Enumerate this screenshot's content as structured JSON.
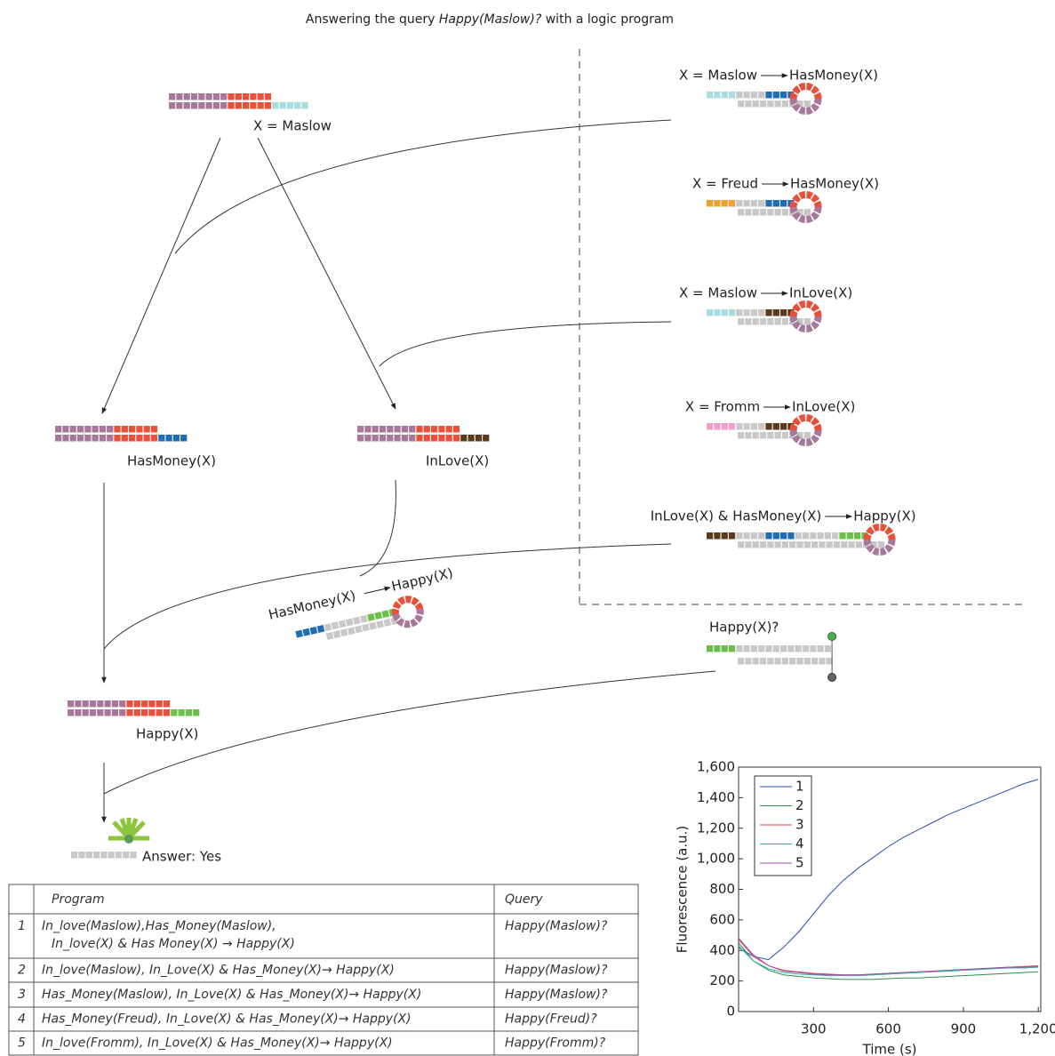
{
  "title": {
    "pre": "Answering the query",
    "query": "Happy(Maslow)?",
    "post": "with a logic program"
  },
  "tree": {
    "root": "X = Maslow",
    "left": "HasMoney(X)",
    "right": "InLove(X)",
    "rule_from": "HasMoney(X)",
    "rule_to": "Happy(X)",
    "goal": "Happy(X)",
    "answer": "Answer: Yes"
  },
  "rules": [
    {
      "left": "X = Maslow",
      "right": "HasMoney(X)"
    },
    {
      "left": "X = Freud",
      "right": "HasMoney(X)"
    },
    {
      "left": "X = Maslow",
      "right": "InLove(X)"
    },
    {
      "left": "X = Fromm",
      "right": "InLove(X)"
    },
    {
      "left": "InLove(X) & HasMoney(X)",
      "right": "Happy(X)"
    }
  ],
  "probe": "Happy(X)?",
  "table": {
    "header": {
      "program": "Program",
      "query": "Query"
    },
    "rows": [
      {
        "n": "1",
        "program": [
          "In_love(Maslow),Has_Money(Maslow),",
          "In_love(X) & Has Money(X) → Happy(X)"
        ],
        "query": "Happy(Maslow)?"
      },
      {
        "n": "2",
        "program": [
          "In_love(Maslow), In_Love(X) & Has_Money(X)→ Happy(X)"
        ],
        "query": "Happy(Maslow)?"
      },
      {
        "n": "3",
        "program": [
          "Has_Money(Maslow), In_Love(X) & Has_Money(X)→ Happy(X)"
        ],
        "query": "Happy(Maslow)?"
      },
      {
        "n": "4",
        "program": [
          "Has_Money(Freud), In_Love(X) & Has_Money(X)→ Happy(X)"
        ],
        "query": "Happy(Freud)?"
      },
      {
        "n": "5",
        "program": [
          "In_love(Fromm), In_Love(X) & Has_Money(X)→ Happy(X)"
        ],
        "query": "Happy(Fromm)?"
      }
    ]
  },
  "chart_data": {
    "type": "line",
    "xlabel": "Time (s)",
    "ylabel": "Fluorescence (a.u.)",
    "x": [
      0,
      60,
      120,
      180,
      240,
      300,
      360,
      420,
      480,
      540,
      600,
      660,
      720,
      780,
      840,
      900,
      960,
      1020,
      1080,
      1140,
      1200
    ],
    "series": [
      {
        "name": "1",
        "color": "#2a4fb0",
        "values": [
          420,
          360,
          340,
          420,
          520,
          640,
          760,
          860,
          940,
          1010,
          1080,
          1140,
          1190,
          1240,
          1290,
          1330,
          1370,
          1410,
          1450,
          1490,
          1520
        ]
      },
      {
        "name": "2",
        "color": "#2e8a4a",
        "values": [
          450,
          330,
          270,
          240,
          230,
          220,
          215,
          210,
          210,
          210,
          215,
          220,
          220,
          225,
          230,
          235,
          240,
          245,
          250,
          255,
          260
        ]
      },
      {
        "name": "3",
        "color": "#e04848",
        "values": [
          470,
          360,
          300,
          270,
          260,
          250,
          245,
          240,
          240,
          245,
          250,
          255,
          260,
          265,
          270,
          275,
          280,
          285,
          290,
          295,
          300
        ]
      },
      {
        "name": "4",
        "color": "#35b5a0",
        "values": [
          430,
          330,
          280,
          255,
          245,
          240,
          235,
          235,
          235,
          240,
          245,
          250,
          255,
          260,
          265,
          270,
          275,
          280,
          285,
          285,
          290
        ]
      },
      {
        "name": "5",
        "color": "#9a4fa8",
        "values": [
          480,
          370,
          300,
          265,
          255,
          245,
          240,
          240,
          240,
          245,
          250,
          255,
          260,
          265,
          270,
          275,
          280,
          285,
          290,
          290,
          295
        ]
      }
    ],
    "xlim": [
      0,
      1210
    ],
    "ylim": [
      0,
      1600
    ],
    "xticks": [
      300,
      600,
      900,
      {
        "value": 1200,
        "label": "1,200"
      }
    ],
    "yticks": [
      0,
      200,
      400,
      600,
      800,
      {
        "value": 1000,
        "label": "1,000"
      },
      {
        "value": 1200,
        "label": "1,200"
      },
      {
        "value": 1400,
        "label": "1,400"
      },
      {
        "value": 1600,
        "label": "1,600"
      }
    ],
    "legend": "upper-left"
  }
}
